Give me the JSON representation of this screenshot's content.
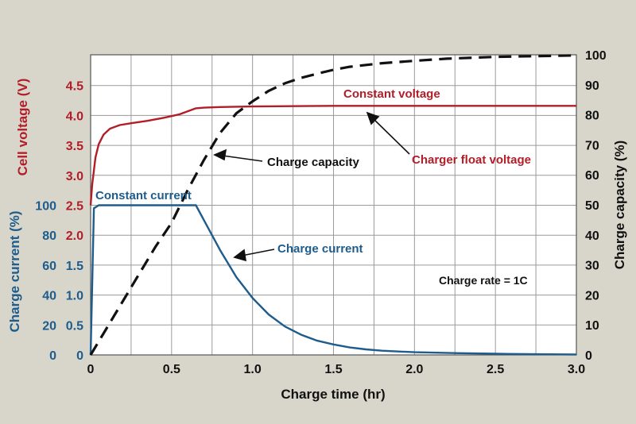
{
  "chart_data": {
    "type": "line",
    "xlabel": "Charge time (hr)",
    "x_ticks": [
      "0",
      "0.5",
      "1.0",
      "1.5",
      "2.0",
      "2.5",
      "3.0"
    ],
    "xlim": [
      0,
      3.0
    ],
    "y_left_voltage": {
      "label": "Cell voltage (V)",
      "ticks": [
        "2.0",
        "2.5",
        "3.0",
        "3.5",
        "4.0",
        "4.5"
      ],
      "color": "#b21e28"
    },
    "y_left_current": {
      "label": "Charge current (%)",
      "ticks": [
        "0",
        "20",
        "40",
        "60",
        "80",
        "100"
      ],
      "volt_scale_ticks": [
        "0",
        "0.5",
        "1.0",
        "1.5"
      ],
      "color": "#1d5c8c"
    },
    "y_right": {
      "label": "Charge capacity (%)",
      "ticks": [
        "0",
        "10",
        "20",
        "30",
        "40",
        "50",
        "60",
        "70",
        "80",
        "90",
        "100"
      ],
      "color": "#111111"
    },
    "series": [
      {
        "key": "voltage",
        "axis": "voltage",
        "color": "#b21e28",
        "style": "solid",
        "x": [
          0,
          0.01,
          0.03,
          0.05,
          0.08,
          0.12,
          0.18,
          0.25,
          0.35,
          0.45,
          0.55,
          0.6,
          0.65,
          0.7,
          0.8,
          1.0,
          1.5,
          2.0,
          2.5,
          3.0
        ],
        "y": [
          2.5,
          2.85,
          3.3,
          3.52,
          3.68,
          3.78,
          3.84,
          3.87,
          3.91,
          3.96,
          4.02,
          4.07,
          4.12,
          4.13,
          4.14,
          4.15,
          4.16,
          4.16,
          4.16,
          4.16
        ]
      },
      {
        "key": "current",
        "axis": "current",
        "color": "#1d5c8c",
        "style": "solid",
        "x": [
          0,
          0.02,
          0.05,
          0.1,
          0.3,
          0.5,
          0.65,
          0.7,
          0.8,
          0.9,
          1.0,
          1.1,
          1.2,
          1.3,
          1.4,
          1.5,
          1.6,
          1.7,
          1.8,
          2.0,
          2.25,
          2.5,
          2.75,
          3.0
        ],
        "y": [
          0,
          98,
          100,
          100,
          100,
          100,
          100,
          90,
          70,
          52,
          38,
          27,
          19,
          13.5,
          9.5,
          7,
          5,
          3.7,
          2.8,
          1.8,
          1.2,
          0.8,
          0.5,
          0.3
        ]
      },
      {
        "key": "capacity",
        "axis": "capacity",
        "color": "#111111",
        "style": "dashed",
        "x": [
          0,
          0.1,
          0.2,
          0.3,
          0.4,
          0.5,
          0.6,
          0.7,
          0.8,
          0.9,
          1.0,
          1.1,
          1.2,
          1.3,
          1.4,
          1.5,
          1.6,
          1.8,
          2.0,
          2.2,
          2.5,
          3.0
        ],
        "y": [
          0,
          9,
          18,
          27,
          36,
          44,
          55,
          65,
          74,
          80.5,
          84.5,
          88,
          90.5,
          92.3,
          93.7,
          95,
          96,
          97.2,
          98,
          98.7,
          99.3,
          99.8
        ]
      }
    ],
    "annotations": {
      "constant_voltage": "Constant voltage",
      "charge_capacity": "Charge capacity",
      "charger_float_voltage": "Charger float voltage",
      "constant_current": "Constant current",
      "charge_current": "Charge current",
      "charge_rate": "Charge rate = 1C"
    },
    "grid": true
  }
}
